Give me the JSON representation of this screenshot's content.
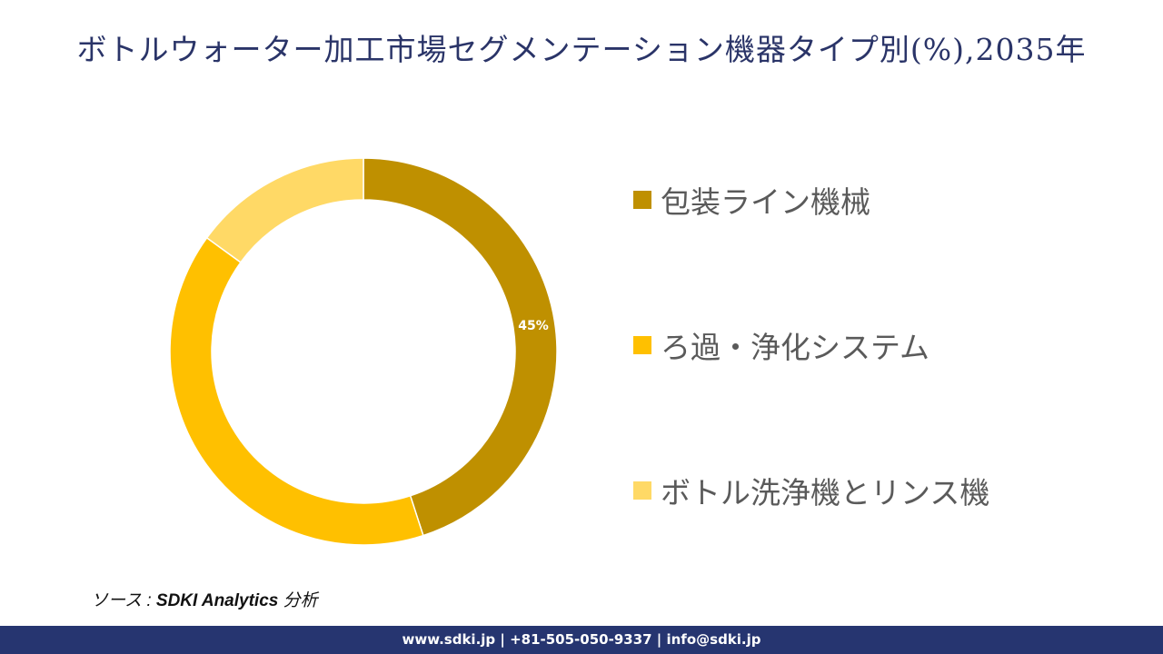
{
  "title": "ボトルウォーター加工市場セグメンテーション機器タイプ別(%),2035年",
  "chart_data": {
    "type": "pie",
    "subtype": "donut",
    "title": "ボトルウォーター加工市場セグメンテーション機器タイプ別(%),2035年",
    "categories": [
      "包装ライン機械",
      "ろ過・浄化システム",
      "ボトル洗浄機とリンス機"
    ],
    "values": [
      45,
      40,
      15
    ],
    "colors": [
      "#BF9000",
      "#FFC000",
      "#FFD966"
    ],
    "data_labels": [
      "45%",
      "",
      ""
    ],
    "legend_position": "right",
    "start_angle": "12 o'clock, clockwise"
  },
  "legend": {
    "items": [
      {
        "label": "包装ライン機械",
        "color": "#BF9000"
      },
      {
        "label": "ろ過・浄化システム",
        "color": "#FFC000"
      },
      {
        "label": "ボトル洗浄機とリンス機",
        "color": "#FFD966"
      }
    ]
  },
  "data_label_text": "45%",
  "source": {
    "prefix": "ソース : ",
    "name": "SDKI Analytics",
    "suffix": " 分析"
  },
  "footer": {
    "text": "www.sdki.jp | +81-505-050-9337 | info@sdki.jp"
  }
}
